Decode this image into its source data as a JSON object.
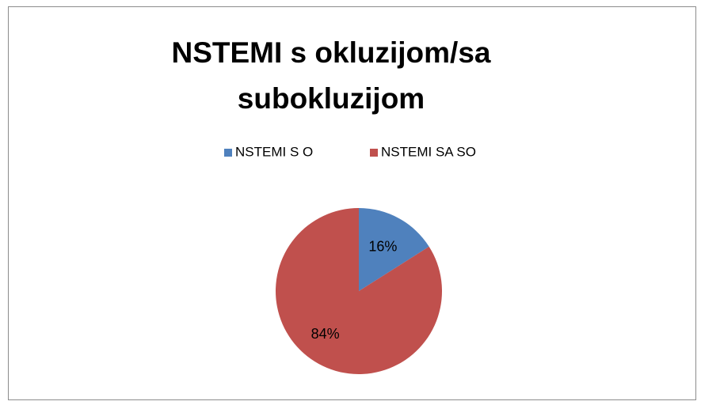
{
  "chart_data": {
    "type": "pie",
    "title": "NSTEMI s okluzijom/sa subokluzijom",
    "categories": [
      "NSTEMI S O",
      "NSTEMI SA SO"
    ],
    "values": [
      16,
      84
    ],
    "value_labels": [
      "16%",
      "84%"
    ],
    "colors": [
      "#4f81bd",
      "#c0504d"
    ],
    "legend": "top"
  }
}
